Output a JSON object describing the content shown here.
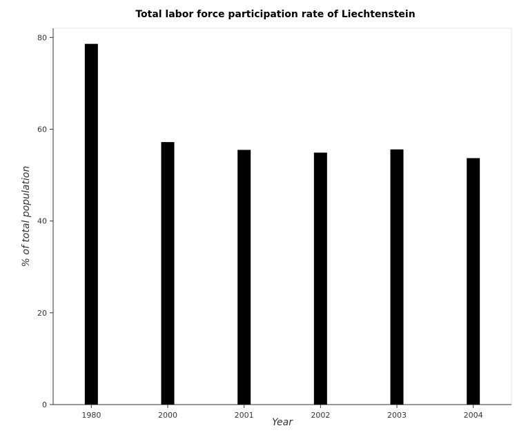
{
  "chart_data": {
    "type": "bar",
    "title": "Total labor force participation rate of Liechtenstein",
    "xlabel": "Year",
    "ylabel": "% of total population",
    "categories": [
      "1980",
      "2000",
      "2001",
      "2002",
      "2003",
      "2004"
    ],
    "values": [
      78.6,
      57.2,
      55.5,
      54.9,
      55.6,
      53.7
    ],
    "ylim": [
      0,
      82
    ],
    "yticks": [
      0,
      20,
      40,
      60,
      80
    ],
    "bar_color": "#000000",
    "grid": false
  }
}
